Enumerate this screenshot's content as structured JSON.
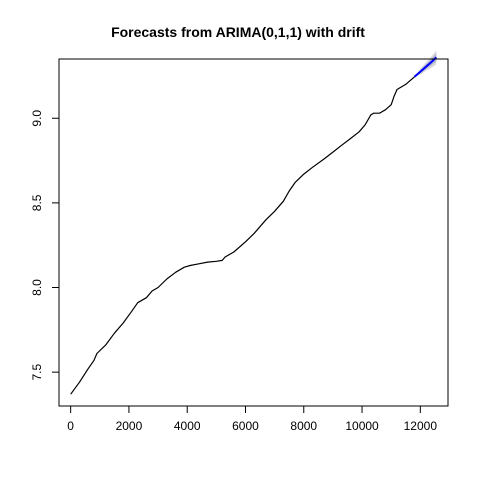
{
  "chart_data": {
    "type": "line",
    "title": "Forecasts from ARIMA(0,1,1) with drift",
    "xlabel": "",
    "ylabel": "",
    "xlim": [
      -400,
      12950
    ],
    "ylim": [
      7.3,
      9.35
    ],
    "x_ticks": [
      0,
      2000,
      4000,
      6000,
      8000,
      10000,
      12000
    ],
    "y_ticks": [
      7.5,
      8.0,
      8.5,
      9.0
    ],
    "x_tick_labels": [
      "0",
      "2000",
      "4000",
      "6000",
      "8000",
      "10000",
      "12000"
    ],
    "y_tick_labels": [
      "7.5",
      "8.0",
      "8.5",
      "9.0"
    ],
    "grid": false,
    "series": [
      {
        "role": "observed",
        "color": "#000000",
        "x": [
          0,
          300,
          600,
          800,
          900,
          1200,
          1500,
          1800,
          2100,
          2300,
          2600,
          2800,
          3000,
          3300,
          3600,
          3900,
          4100,
          4400,
          4700,
          5000,
          5200,
          5300,
          5600,
          6000,
          6300,
          6700,
          7000,
          7300,
          7500,
          7700,
          8000,
          8300,
          8700,
          9000,
          9300,
          9600,
          9900,
          10100,
          10300,
          10400,
          10600,
          10800,
          11000,
          11100,
          11200,
          11500,
          11700,
          11800
        ],
        "y": [
          7.37,
          7.44,
          7.52,
          7.57,
          7.61,
          7.66,
          7.73,
          7.79,
          7.86,
          7.91,
          7.94,
          7.98,
          8.0,
          8.05,
          8.09,
          8.12,
          8.13,
          8.14,
          8.15,
          8.155,
          8.16,
          8.18,
          8.21,
          8.27,
          8.32,
          8.4,
          8.45,
          8.51,
          8.57,
          8.62,
          8.67,
          8.71,
          8.76,
          8.8,
          8.84,
          8.88,
          8.92,
          8.96,
          9.02,
          9.03,
          9.03,
          9.05,
          9.08,
          9.13,
          9.17,
          9.2,
          9.23,
          9.245
        ]
      },
      {
        "role": "forecast",
        "color": "#0000ff",
        "x": [
          11800,
          12000,
          12200,
          12400,
          12550
        ],
        "y": [
          9.245,
          9.275,
          9.305,
          9.335,
          9.36
        ],
        "lo80": [
          9.245,
          9.265,
          9.29,
          9.315,
          9.335
        ],
        "hi80": [
          9.245,
          9.285,
          9.32,
          9.355,
          9.385
        ],
        "lo95": [
          9.245,
          9.258,
          9.28,
          9.3,
          9.318
        ],
        "hi95": [
          9.245,
          9.292,
          9.33,
          9.37,
          9.4
        ]
      }
    ],
    "band_colors": {
      "ci95": "#dbdbdf",
      "ci80": "#b1b5ce"
    }
  }
}
